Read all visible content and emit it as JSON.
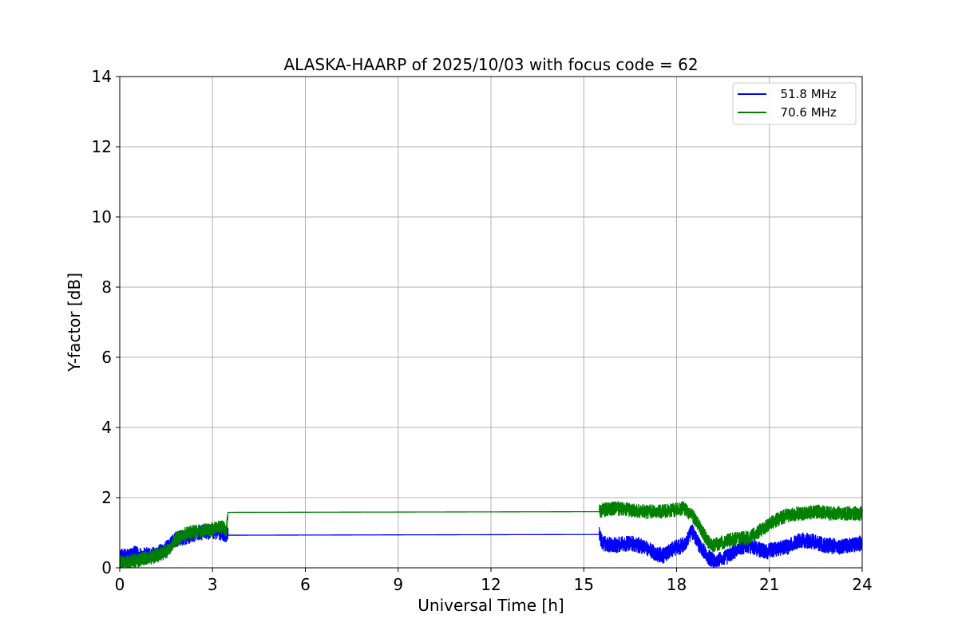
{
  "chart_data": {
    "type": "line",
    "title": "ALASKA-HAARP of 2025/10/03 with focus code = 62",
    "xlabel": "Universal Time [h]",
    "ylabel": "Y-factor [dB]",
    "xlim": [
      0,
      24
    ],
    "ylim": [
      0,
      14
    ],
    "xticks": [
      0,
      3,
      6,
      9,
      12,
      15,
      18,
      21,
      24
    ],
    "yticks": [
      0,
      2,
      4,
      6,
      8,
      10,
      12,
      14
    ],
    "grid": true,
    "legend_position": "top-right",
    "series": [
      {
        "name": "51.8 MHz",
        "legend_label": "  51.8 MHz",
        "color": "#0000ff",
        "noise_db": 0.22,
        "x": [
          0,
          0.3,
          0.5,
          0.8,
          1.2,
          1.5,
          1.8,
          2.2,
          2.6,
          3.0,
          3.3,
          3.5,
          15.5,
          15.6,
          16.0,
          16.5,
          17.0,
          17.3,
          17.6,
          17.9,
          18.1,
          18.3,
          18.5,
          18.7,
          18.9,
          19.1,
          19.3,
          19.6,
          20.0,
          20.3,
          20.6,
          20.9,
          21.2,
          21.6,
          22.0,
          22.4,
          22.8,
          23.2,
          23.6,
          24.0
        ],
        "y": [
          0.3,
          0.35,
          0.4,
          0.35,
          0.4,
          0.55,
          0.8,
          0.9,
          1.0,
          1.05,
          1.0,
          0.93,
          0.95,
          0.7,
          0.65,
          0.7,
          0.6,
          0.4,
          0.35,
          0.55,
          0.6,
          0.7,
          1.05,
          0.7,
          0.45,
          0.25,
          0.2,
          0.3,
          0.55,
          0.65,
          0.55,
          0.45,
          0.55,
          0.6,
          0.8,
          0.75,
          0.65,
          0.6,
          0.65,
          0.7
        ]
      },
      {
        "name": "70.6 MHz",
        "legend_label": "  70.6 MHz",
        "color": "#008000",
        "noise_db": 0.2,
        "x": [
          0,
          0.5,
          1.0,
          1.5,
          1.8,
          2.2,
          2.6,
          3.0,
          3.3,
          3.45,
          3.5,
          15.5,
          15.6,
          16.0,
          16.5,
          17.0,
          17.5,
          18.0,
          18.2,
          18.5,
          18.8,
          19.0,
          19.2,
          19.6,
          20.0,
          20.3,
          20.6,
          21.0,
          21.3,
          21.6,
          22.0,
          22.5,
          23.0,
          23.5,
          24.0
        ],
        "y": [
          0.15,
          0.2,
          0.3,
          0.45,
          0.8,
          1.0,
          1.05,
          1.1,
          1.15,
          1.1,
          1.58,
          1.6,
          1.65,
          1.7,
          1.65,
          1.6,
          1.6,
          1.65,
          1.7,
          1.5,
          1.1,
          0.75,
          0.65,
          0.75,
          0.85,
          0.85,
          1.0,
          1.25,
          1.4,
          1.5,
          1.55,
          1.6,
          1.55,
          1.55,
          1.55
        ]
      }
    ]
  }
}
